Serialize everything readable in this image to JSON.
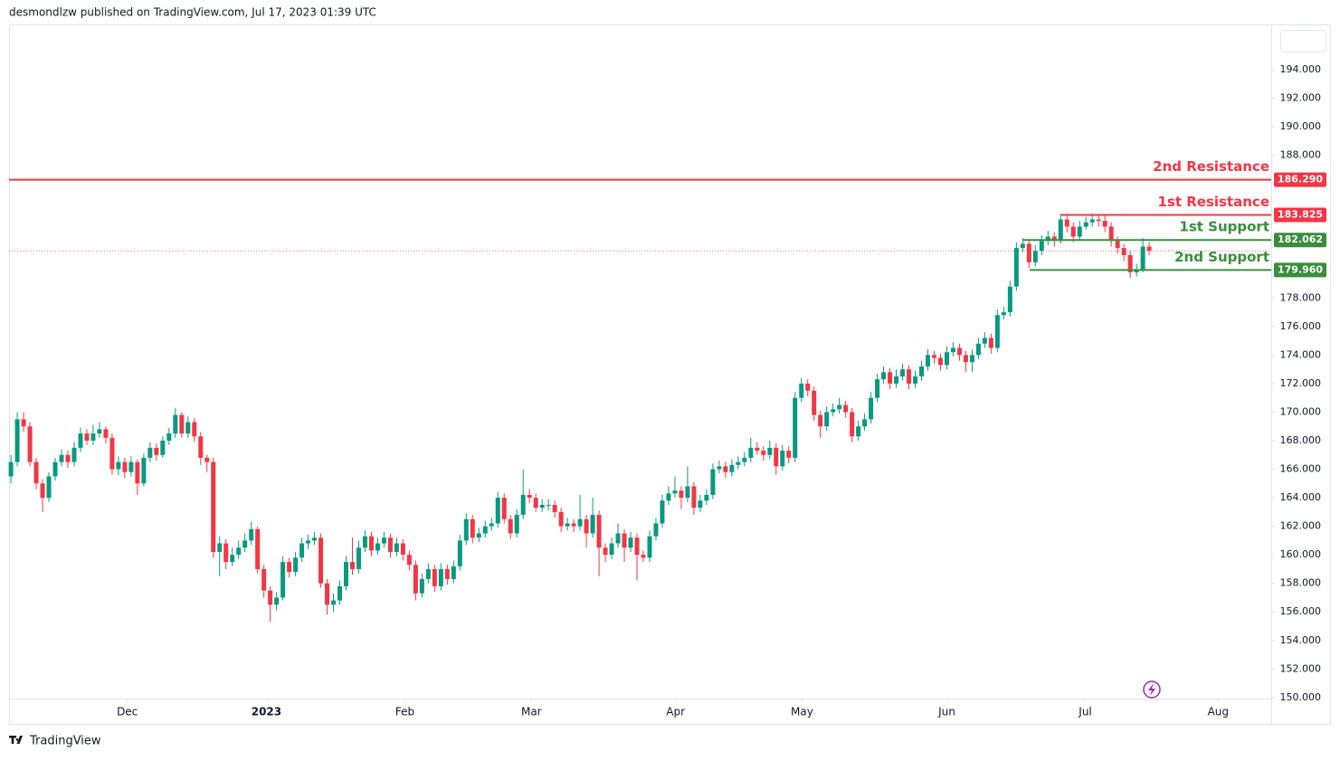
{
  "header_text": "desmondlzw published on TradingView.com, Jul 17, 2023 01:39 UTC",
  "footer_text": "TradingView",
  "chart_data": {
    "type": "candlestick",
    "up_color": "#089981",
    "down_color": "#f23645",
    "xlim": [
      -0.3,
      199.3
    ],
    "ylim": [
      148.15,
      197.17
    ],
    "yticks": [
      {
        "value": 194,
        "label": "194.000"
      },
      {
        "value": 192,
        "label": "192.000"
      },
      {
        "value": 190,
        "label": "190.000"
      },
      {
        "value": 188,
        "label": "188.000"
      },
      {
        "value": 186,
        "label": "186.000"
      },
      {
        "value": 184,
        "label": "184.000"
      },
      {
        "value": 182,
        "label": "182.000"
      },
      {
        "value": 180,
        "label": "180.000"
      },
      {
        "value": 178,
        "label": "178.000"
      },
      {
        "value": 176,
        "label": "176.000"
      },
      {
        "value": 174,
        "label": "174.000"
      },
      {
        "value": 172,
        "label": "172.000"
      },
      {
        "value": 170,
        "label": "170.000"
      },
      {
        "value": 168,
        "label": "168.000"
      },
      {
        "value": 166,
        "label": "166.000"
      },
      {
        "value": 164,
        "label": "164.000"
      },
      {
        "value": 162,
        "label": "162.000"
      },
      {
        "value": 160,
        "label": "160.000"
      },
      {
        "value": 158,
        "label": "158.000"
      },
      {
        "value": 156,
        "label": "156.000"
      },
      {
        "value": 154,
        "label": "154.000"
      },
      {
        "value": 152,
        "label": "152.000"
      },
      {
        "value": 150,
        "label": "150.000"
      }
    ],
    "xticks": [
      {
        "value": 18.4,
        "label": "Dec"
      },
      {
        "value": 40.4,
        "label": "2023"
      },
      {
        "value": 62.3,
        "label": "Feb"
      },
      {
        "value": 82.3,
        "label": "Mar"
      },
      {
        "value": 105.1,
        "label": "Apr"
      },
      {
        "value": 125.1,
        "label": "May"
      },
      {
        "value": 148,
        "label": "Jun"
      },
      {
        "value": 169.9,
        "label": "Jul"
      },
      {
        "value": 190.9,
        "label": "Aug"
      }
    ],
    "levels": [
      {
        "name": "2nd Resistance",
        "value": 186.29,
        "label": "186.290",
        "color": "#f23645"
      },
      {
        "name": "1st Resistance",
        "value": 183.825,
        "label": "183.825",
        "color": "#f23645"
      },
      {
        "name": "1st Support",
        "value": 182.062,
        "label": "182.062",
        "color": "#388e3c"
      },
      {
        "name": "2nd Support",
        "value": 179.96,
        "label": "179.960",
        "color": "#388e3c"
      }
    ],
    "open": [
      165.5,
      166.5,
      169.5,
      169.0,
      166.5,
      165.0,
      164.0,
      165.5,
      166.5,
      167.0,
      166.5,
      167.5,
      168.5,
      168.0,
      168.5,
      168.8,
      168.2,
      166.0,
      166.5,
      165.8,
      166.5,
      165.0,
      166.8,
      167.5,
      167.0,
      168.0,
      168.5,
      169.8,
      168.5,
      169.3,
      168.3,
      166.8,
      166.5,
      160.2,
      160.8,
      159.5,
      160.0,
      160.5,
      161.0,
      161.8,
      159.0,
      157.5,
      156.5,
      157.0,
      159.5,
      158.8,
      159.8,
      160.8,
      161.0,
      161.2,
      158.0,
      156.5,
      156.8,
      157.8,
      159.5,
      159.0,
      160.5,
      161.3,
      160.3,
      160.8,
      161.2,
      160.2,
      160.8,
      160.0,
      159.3,
      157.3,
      158.3,
      159.0,
      157.8,
      159.0,
      158.3,
      159.2,
      161.0,
      162.5,
      161.2,
      161.5,
      162.0,
      162.2,
      164.0,
      162.5,
      161.5,
      162.8,
      164.2,
      164.0,
      163.3,
      163.5,
      163.5,
      163.0,
      162.0,
      162.2,
      162.0,
      162.5,
      161.5,
      162.8,
      160.5,
      160.0,
      160.8,
      161.5,
      160.5,
      161.2,
      160.0,
      159.8,
      161.3,
      162.2,
      163.8,
      164.3,
      164.5,
      164.0,
      164.8,
      163.3,
      163.8,
      164.2,
      166.0,
      166.2,
      165.8,
      166.3,
      166.5,
      166.8,
      167.5,
      167.3,
      167.0,
      167.5,
      166.2,
      167.3,
      166.8,
      171.0,
      172.0,
      171.5,
      169.8,
      169.0,
      170.0,
      170.2,
      170.5,
      170.0,
      168.3,
      169.0,
      169.5,
      171.0,
      172.3,
      172.8,
      172.0,
      172.5,
      173.0,
      172.0,
      172.5,
      173.2,
      174.0,
      173.8,
      173.3,
      174.2,
      174.5,
      174.0,
      173.5,
      174.0,
      174.8,
      175.2,
      174.5,
      176.8,
      177.0,
      178.8,
      181.5,
      181.8,
      180.5,
      181.3,
      182.0,
      182.3,
      182.0,
      183.5,
      183.0,
      182.3,
      183.0,
      183.3,
      183.5,
      183.4,
      183.0,
      182.0,
      181.5,
      181.0,
      179.8,
      180.0,
      181.6
    ],
    "high": [
      167.0,
      170.0,
      170.0,
      169.3,
      166.8,
      165.3,
      165.8,
      166.8,
      167.4,
      167.3,
      167.9,
      168.9,
      168.8,
      169.1,
      169.3,
      169.0,
      168.5,
      166.9,
      166.8,
      166.9,
      166.7,
      167.1,
      167.9,
      167.8,
      168.3,
      168.9,
      170.3,
      170.0,
      169.7,
      169.6,
      168.6,
      167.0,
      166.8,
      161.3,
      161.1,
      160.5,
      161.0,
      161.5,
      162.3,
      162.0,
      159.3,
      157.8,
      157.4,
      159.9,
      159.8,
      160.2,
      161.2,
      161.4,
      161.6,
      161.5,
      158.3,
      157.3,
      158.2,
      159.9,
      161.2,
      161.0,
      161.7,
      161.6,
      161.2,
      161.6,
      161.5,
      161.2,
      161.1,
      160.3,
      159.6,
      158.7,
      159.4,
      159.3,
      159.4,
      159.3,
      159.6,
      161.4,
      162.9,
      162.8,
      161.9,
      162.4,
      162.6,
      164.4,
      164.3,
      162.8,
      163.2,
      166.0,
      164.6,
      164.3,
      163.9,
      163.9,
      163.8,
      163.3,
      162.6,
      162.5,
      164.2,
      162.8,
      164.0,
      163.1,
      160.8,
      161.2,
      162.2,
      161.8,
      161.6,
      161.5,
      160.3,
      161.7,
      162.6,
      164.2,
      164.8,
      165.5,
      164.8,
      166.2,
      165.1,
      164.2,
      164.6,
      166.4,
      166.6,
      166.5,
      166.7,
      166.9,
      167.2,
      168.2,
      167.9,
      167.6,
      168.0,
      167.8,
      167.7,
      167.6,
      171.4,
      172.4,
      172.3,
      171.8,
      170.1,
      170.4,
      170.6,
      171.0,
      170.8,
      170.3,
      169.4,
      169.9,
      171.4,
      172.7,
      173.2,
      173.1,
      173.0,
      173.4,
      173.3,
      172.9,
      173.6,
      174.4,
      174.3,
      174.1,
      174.6,
      174.9,
      174.8,
      174.3,
      174.4,
      175.2,
      175.6,
      175.5,
      177.2,
      177.4,
      179.2,
      181.9,
      182.2,
      182.0,
      181.7,
      182.4,
      182.7,
      182.6,
      183.9,
      183.8,
      183.3,
      183.4,
      183.7,
      183.9,
      183.9,
      183.8,
      183.3,
      182.3,
      181.8,
      181.3,
      180.4,
      182.2,
      181.9
    ],
    "low": [
      165.0,
      166.2,
      168.6,
      166.2,
      164.6,
      163.0,
      163.7,
      165.2,
      166.2,
      166.1,
      166.2,
      167.2,
      167.7,
      167.7,
      168.2,
      167.8,
      165.6,
      165.6,
      165.4,
      165.5,
      164.2,
      164.8,
      166.5,
      166.6,
      166.8,
      167.7,
      168.2,
      168.2,
      168.2,
      167.9,
      166.3,
      165.8,
      159.8,
      158.5,
      159.0,
      159.2,
      159.7,
      160.2,
      160.7,
      158.7,
      157.0,
      155.3,
      156.1,
      156.8,
      158.4,
      158.5,
      159.5,
      160.4,
      160.7,
      157.7,
      155.8,
      156.0,
      156.5,
      157.5,
      158.6,
      158.7,
      160.2,
      159.9,
      160.0,
      160.5,
      159.8,
      159.9,
      159.6,
      158.9,
      156.8,
      157.0,
      158.0,
      157.4,
      157.5,
      157.9,
      158.0,
      158.9,
      160.7,
      160.8,
      160.9,
      161.2,
      161.7,
      161.9,
      162.2,
      161.1,
      161.2,
      162.5,
      163.6,
      163.0,
      163.0,
      163.1,
      162.6,
      161.6,
      161.7,
      161.6,
      161.7,
      160.5,
      161.2,
      158.5,
      159.5,
      159.7,
      160.5,
      159.5,
      160.2,
      158.2,
      159.5,
      159.5,
      161.0,
      161.9,
      163.5,
      164.0,
      163.2,
      163.7,
      162.8,
      163.0,
      163.5,
      163.9,
      165.7,
      165.4,
      165.5,
      166.0,
      166.2,
      166.5,
      167.0,
      166.6,
      166.7,
      165.6,
      165.9,
      166.4,
      166.5,
      170.7,
      171.1,
      169.4,
      168.2,
      168.7,
      169.7,
      169.9,
      169.6,
      167.9,
      168.0,
      168.7,
      169.2,
      170.7,
      172.0,
      171.6,
      171.7,
      172.2,
      171.6,
      171.7,
      172.2,
      172.9,
      173.4,
      172.9,
      173.0,
      173.9,
      173.6,
      172.8,
      172.8,
      173.7,
      174.5,
      174.1,
      174.2,
      176.5,
      176.7,
      178.5,
      181.2,
      180.1,
      180.2,
      181.0,
      181.7,
      181.6,
      181.8,
      182.6,
      181.9,
      182.0,
      182.8,
      183.0,
      183.0,
      182.6,
      181.6,
      181.1,
      180.6,
      179.4,
      179.5,
      179.8,
      181.0
    ],
    "close": [
      166.5,
      169.5,
      169.0,
      166.5,
      165.0,
      164.0,
      165.5,
      166.5,
      167.0,
      166.5,
      167.5,
      168.5,
      168.0,
      168.5,
      168.8,
      168.2,
      166.0,
      166.5,
      165.8,
      166.5,
      165.0,
      166.8,
      167.5,
      167.0,
      168.0,
      168.5,
      169.8,
      168.5,
      169.3,
      168.3,
      166.8,
      166.5,
      160.2,
      160.8,
      159.5,
      160.0,
      160.5,
      161.0,
      161.8,
      159.0,
      157.5,
      156.5,
      157.0,
      159.5,
      158.8,
      159.8,
      160.8,
      161.0,
      161.2,
      158.0,
      156.5,
      156.8,
      157.8,
      159.5,
      159.0,
      160.5,
      161.3,
      160.3,
      160.8,
      161.2,
      160.2,
      160.8,
      160.0,
      159.3,
      157.3,
      158.3,
      159.0,
      157.8,
      159.0,
      158.3,
      159.2,
      161.0,
      162.5,
      161.2,
      161.5,
      162.0,
      162.2,
      164.0,
      162.5,
      161.5,
      162.8,
      164.2,
      164.0,
      163.3,
      163.5,
      163.5,
      163.0,
      162.0,
      162.2,
      162.0,
      162.5,
      161.5,
      162.8,
      160.5,
      160.0,
      160.8,
      161.5,
      160.5,
      161.2,
      160.0,
      159.8,
      161.3,
      162.2,
      163.8,
      164.3,
      164.5,
      164.0,
      164.8,
      163.3,
      163.8,
      164.2,
      166.0,
      166.2,
      165.8,
      166.3,
      166.5,
      166.8,
      167.5,
      167.3,
      167.0,
      167.5,
      166.2,
      167.3,
      166.8,
      171.0,
      172.0,
      171.5,
      169.8,
      169.0,
      170.0,
      170.2,
      170.5,
      170.0,
      168.3,
      169.0,
      169.5,
      171.0,
      172.3,
      172.8,
      172.0,
      172.5,
      173.0,
      172.0,
      172.5,
      173.2,
      174.0,
      173.8,
      173.3,
      174.2,
      174.5,
      174.0,
      173.5,
      174.0,
      174.8,
      175.2,
      174.5,
      176.8,
      177.0,
      178.8,
      181.5,
      181.8,
      180.5,
      181.3,
      182.0,
      182.3,
      182.0,
      183.5,
      183.0,
      182.3,
      183.0,
      183.3,
      183.5,
      183.4,
      183.0,
      182.0,
      181.5,
      181.0,
      179.8,
      180.0,
      181.6,
      181.3
    ]
  }
}
